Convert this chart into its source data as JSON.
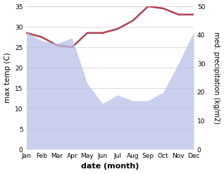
{
  "months": [
    "Jan",
    "Feb",
    "Mar",
    "Apr",
    "May",
    "Jun",
    "Jul",
    "Aug",
    "Sep",
    "Oct",
    "Nov",
    "Dec"
  ],
  "temp": [
    28.5,
    27.5,
    25.5,
    25.0,
    28.5,
    28.5,
    29.5,
    31.5,
    35.0,
    34.5,
    33.0,
    33.0
  ],
  "precip": [
    41,
    38,
    37,
    39,
    23,
    16,
    19,
    17,
    17,
    20,
    30,
    41
  ],
  "temp_color": "#b04050",
  "precip_fill_color": "#b8c0e8",
  "precip_fill_alpha": 0.75,
  "temp_ylim": [
    0,
    35
  ],
  "precip_ylim": [
    0,
    50
  ],
  "temp_yticks": [
    0,
    5,
    10,
    15,
    20,
    25,
    30,
    35
  ],
  "precip_yticks": [
    0,
    10,
    20,
    30,
    40,
    50
  ],
  "xlabel": "date (month)",
  "ylabel_left": "max temp (C)",
  "ylabel_right": "med. precipitation (kg/m2)",
  "temp_linewidth": 1.8,
  "precip_linewidth": 0,
  "grid_color": "#cccccc",
  "background_color": "#ffffff",
  "tick_fontsize": 6.5,
  "xlabel_fontsize": 8,
  "ylabel_fontsize": 7.5
}
